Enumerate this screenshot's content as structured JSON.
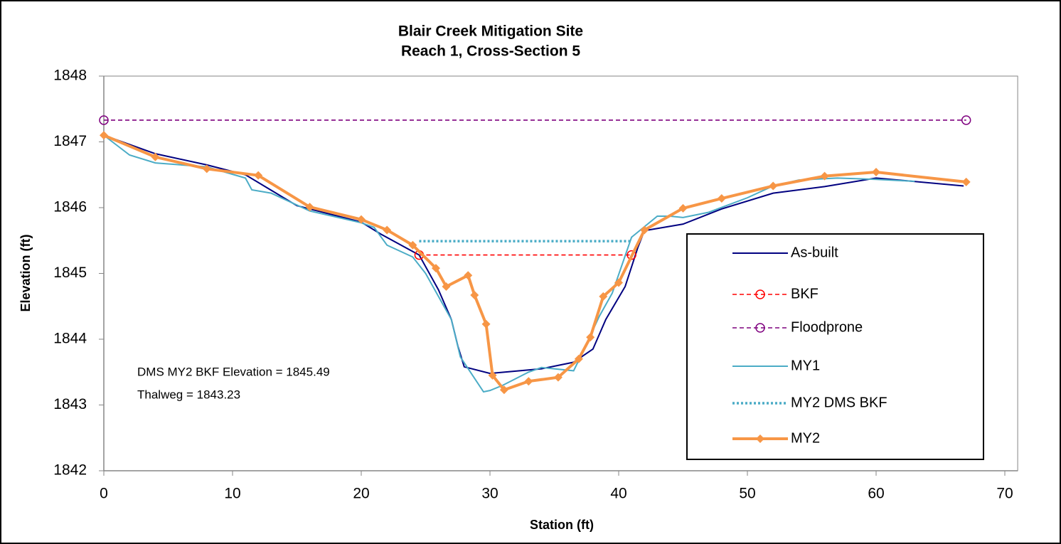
{
  "chart_data": {
    "type": "line",
    "title": "Blair Creek Mitigation Site",
    "subtitle": "Reach 1, Cross-Section 5",
    "x_label": "Station (ft)",
    "y_label": "Elevation (ft)",
    "annotations": [
      "DMS MY2 BKF Elevation = 1845.49",
      "Thalweg = 1843.23"
    ],
    "xlim": [
      0,
      71
    ],
    "xticks": [
      0,
      10,
      20,
      30,
      40,
      50,
      60,
      70
    ],
    "ylim": [
      1842,
      1848
    ],
    "yticks": [
      1842,
      1843,
      1844,
      1845,
      1846,
      1847,
      1848
    ],
    "series": [
      {
        "name": "As-built",
        "color": "#000080",
        "style": "solid",
        "marker": "none",
        "x": [
          0,
          4,
          8,
          11,
          15,
          20,
          21.5,
          24.5,
          26,
          27,
          27.5,
          28,
          30,
          34,
          36.5,
          38,
          39,
          40.5,
          41.5,
          42,
          45,
          48,
          52,
          56,
          60,
          66.8
        ],
        "values": [
          1847.1,
          1846.82,
          1846.65,
          1846.5,
          1846.03,
          1845.78,
          1845.6,
          1845.28,
          1844.75,
          1844.3,
          1843.9,
          1843.58,
          1843.48,
          1843.55,
          1843.65,
          1843.85,
          1844.3,
          1844.8,
          1845.4,
          1845.65,
          1845.75,
          1845.98,
          1846.22,
          1846.32,
          1846.45,
          1846.33
        ]
      },
      {
        "name": "BKF",
        "color": "#ff0000",
        "style": "dashed",
        "marker": "circle",
        "x": [
          24.5,
          41
        ],
        "values": [
          1845.28,
          1845.28
        ]
      },
      {
        "name": "Floodprone",
        "color": "#7f007f",
        "style": "dashed",
        "marker": "circle",
        "x": [
          0,
          67
        ],
        "values": [
          1847.33,
          1847.33
        ]
      },
      {
        "name": "MY1",
        "color": "#4bacc6",
        "style": "solid",
        "marker": "none",
        "x": [
          0,
          2,
          4,
          8,
          11,
          11.5,
          13,
          16,
          20,
          21,
          22,
          24,
          25,
          27,
          27.7,
          29.5,
          30,
          31,
          33,
          34,
          36.5,
          37,
          38.5,
          39.5,
          41,
          43,
          44,
          45,
          47,
          50,
          52,
          54,
          57,
          60,
          63
        ],
        "values": [
          1847.1,
          1846.8,
          1846.68,
          1846.62,
          1846.45,
          1846.27,
          1846.22,
          1845.95,
          1845.77,
          1845.7,
          1845.43,
          1845.25,
          1845.0,
          1844.3,
          1843.73,
          1843.2,
          1843.22,
          1843.3,
          1843.5,
          1843.57,
          1843.52,
          1843.72,
          1844.35,
          1844.7,
          1845.55,
          1845.87,
          1845.87,
          1845.85,
          1845.93,
          1846.15,
          1846.33,
          1846.42,
          1846.45,
          1846.43,
          1846.4
        ]
      },
      {
        "name": "MY2 DMS BKF",
        "color": "#4bacc6",
        "style": "dotted",
        "marker": "none",
        "x": [
          24.5,
          41
        ],
        "values": [
          1845.49,
          1845.49
        ]
      },
      {
        "name": "MY2",
        "color": "#f79646",
        "style": "thick",
        "marker": "diamond",
        "x": [
          0,
          4,
          8,
          12,
          16,
          20,
          22,
          24,
          25.8,
          26.6,
          28.3,
          28.8,
          29.7,
          30.2,
          31.1,
          33,
          35.3,
          36.9,
          37.8,
          38.8,
          40,
          42,
          45,
          48,
          52,
          56,
          60,
          67
        ],
        "values": [
          1847.1,
          1846.77,
          1846.59,
          1846.49,
          1846.01,
          1845.82,
          1845.66,
          1845.43,
          1845.08,
          1844.8,
          1844.97,
          1844.67,
          1844.23,
          1843.45,
          1843.23,
          1843.36,
          1843.42,
          1843.7,
          1844.03,
          1844.65,
          1844.86,
          1845.66,
          1845.99,
          1846.14,
          1846.33,
          1846.48,
          1846.54,
          1846.39
        ]
      }
    ]
  }
}
